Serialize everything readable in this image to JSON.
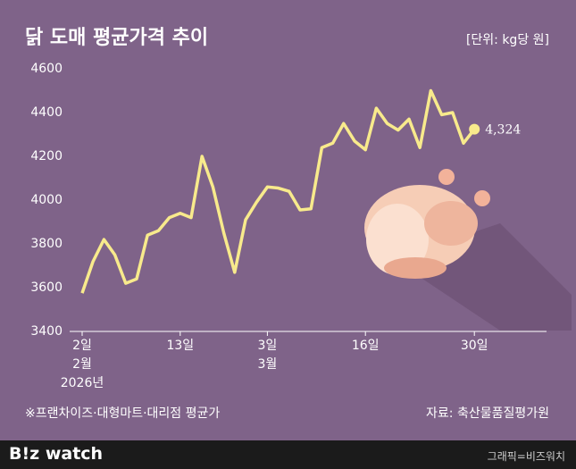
{
  "chart_data": {
    "type": "line",
    "title": "닭 도매 평균가격 추이",
    "unit_note": "[단위: kg당 원]",
    "footnote": "※프랜차이즈·대형마트·대리점 평균가",
    "source": "자료: 축산물품질평가원",
    "brand": "B!z watch",
    "credit": "그래픽=비즈워치",
    "categories": [
      "2일\n2월\n2026년",
      null,
      null,
      null,
      null,
      null,
      null,
      null,
      null,
      "13일",
      null,
      null,
      null,
      null,
      null,
      null,
      null,
      "3일\n3월",
      null,
      null,
      null,
      null,
      null,
      null,
      null,
      null,
      "16일",
      null,
      null,
      null,
      null,
      null,
      null,
      null,
      null,
      null,
      "30일"
    ],
    "series": [
      {
        "name": "닭 도매 평균가격",
        "color": "#f8ea8c",
        "values": [
          3575,
          3720,
          3820,
          3750,
          3620,
          3640,
          3840,
          3860,
          3920,
          3940,
          3920,
          4200,
          4060,
          3850,
          3670,
          3910,
          3990,
          4060,
          4055,
          4040,
          3955,
          3960,
          4240,
          4260,
          4350,
          4270,
          4230,
          4420,
          4350,
          4320,
          4370,
          4240,
          4500,
          4390,
          4400,
          4260,
          4324
        ],
        "value_labels": [
          null,
          null,
          null,
          null,
          null,
          null,
          null,
          null,
          null,
          null,
          null,
          null,
          null,
          null,
          null,
          null,
          null,
          null,
          null,
          null,
          null,
          null,
          null,
          null,
          null,
          null,
          null,
          null,
          null,
          null,
          null,
          null,
          null,
          null,
          null,
          null,
          "4,324"
        ]
      }
    ],
    "ylim": [
      3400,
      4600
    ],
    "yticks": [
      3400,
      3600,
      3800,
      4000,
      4200,
      4400,
      4600
    ],
    "grid": false
  }
}
